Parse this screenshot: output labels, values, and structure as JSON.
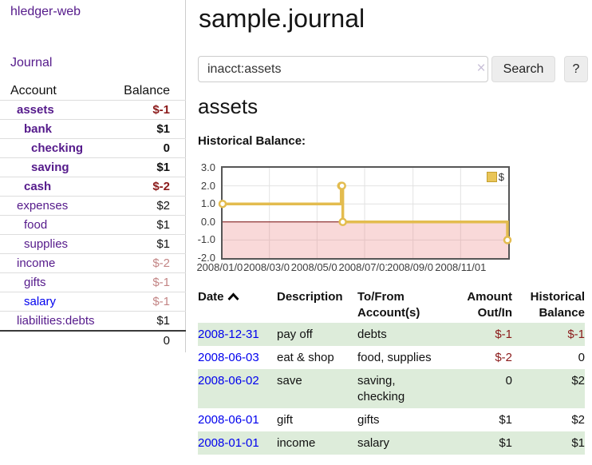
{
  "sidebar": {
    "brand": "hledger-web",
    "journal_link": "Journal",
    "accounts_table": {
      "headers": {
        "account": "Account",
        "balance": "Balance"
      },
      "rows": [
        {
          "name": "assets",
          "balance": "$-1"
        },
        {
          "name": "bank",
          "balance": "$1"
        },
        {
          "name": "checking",
          "balance": "0"
        },
        {
          "name": "saving",
          "balance": "$1"
        },
        {
          "name": "cash",
          "balance": "$-2"
        },
        {
          "name": "expenses",
          "balance": "$2"
        },
        {
          "name": "food",
          "balance": "$1"
        },
        {
          "name": "supplies",
          "balance": "$1"
        },
        {
          "name": "income",
          "balance": "$-2"
        },
        {
          "name": "gifts",
          "balance": "$-1"
        },
        {
          "name": "salary",
          "balance": "$-1"
        },
        {
          "name": "liabilities:debts",
          "balance": "$1"
        }
      ],
      "total": "0"
    }
  },
  "main": {
    "title": "sample.journal",
    "search": {
      "value": "inacct:assets",
      "clear_icon": "×",
      "button_label": "Search",
      "help_label": "?"
    },
    "account_heading": "assets",
    "section_label": "Historical Balance:"
  },
  "chart_data": {
    "type": "line",
    "title": "Historical Balance:",
    "series": [
      {
        "name": "$",
        "step": true,
        "points": [
          [
            "2008/01/01",
            1
          ],
          [
            "2008/06/01",
            2
          ],
          [
            "2008/06/02",
            2
          ],
          [
            "2008/06/03",
            0
          ],
          [
            "2008/12/31",
            -1
          ]
        ]
      }
    ],
    "x_range": [
      "2008/01/01",
      "2009/01/01"
    ],
    "ylim": [
      -2,
      3
    ],
    "y_ticks": [
      "3.0",
      "2.0",
      "1.0",
      "0.0",
      "-1.0",
      "-2.0"
    ],
    "y_tick_values": [
      3,
      2,
      1,
      0,
      -1,
      -2
    ],
    "x_ticks": [
      "2008/01/01",
      "2008/03/01",
      "2008/05/01",
      "2008/07/01",
      "2008/09/01",
      "2008/11/01"
    ],
    "legend_position": "top-right",
    "grid": true,
    "line_color": "#e3bc4f",
    "marker_fill": "#ffffff",
    "negative_fill": "rgba(235,130,130,0.30)",
    "zero_line_color": "#7a0c0c"
  },
  "transactions": {
    "headers": {
      "date": "Date",
      "description": "Description",
      "accounts": "To/From Account(s)",
      "amount": "Amount Out/In",
      "balance": "Historical Balance"
    },
    "rows": [
      {
        "date": "2008-12-31",
        "description": "pay off",
        "accounts": "debts",
        "amount": "$-1",
        "balance": "$-1"
      },
      {
        "date": "2008-06-03",
        "description": "eat & shop",
        "accounts": "food, supplies",
        "amount": "$-2",
        "balance": "0"
      },
      {
        "date": "2008-06-02",
        "description": "save",
        "accounts": "saving, checking",
        "amount": "0",
        "balance": "$2"
      },
      {
        "date": "2008-06-01",
        "description": "gift",
        "accounts": "gifts",
        "amount": "$1",
        "balance": "$2"
      },
      {
        "date": "2008-01-01",
        "description": "income",
        "accounts": "salary",
        "amount": "$1",
        "balance": "$1"
      }
    ]
  }
}
